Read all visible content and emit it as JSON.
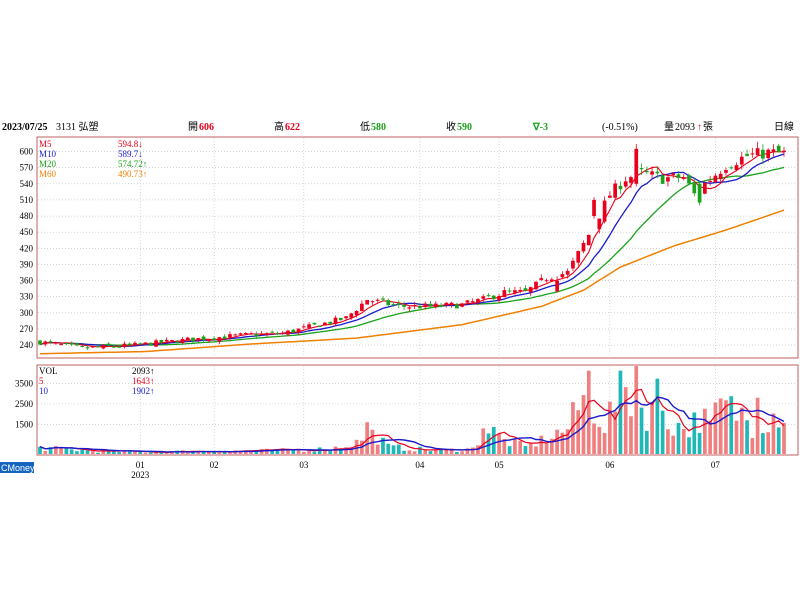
{
  "header": {
    "date": "2023/07/25",
    "stock": "3131 弘塑",
    "open_label": "開",
    "open": "606",
    "high_label": "高",
    "high": "622",
    "low_label": "低",
    "low": "580",
    "close_label": "收",
    "close": "590",
    "change": "∇-3",
    "change_pct": "(-0.51%)",
    "volume_label": "量",
    "volume": "2093",
    "volume_unit": "張",
    "period": "日線"
  },
  "legend": {
    "price": [
      {
        "name": "M5",
        "value": "594.8",
        "arrow": "↓",
        "color": "#e8001c"
      },
      {
        "name": "M10",
        "value": "589.7",
        "arrow": "↓",
        "color": "#1a1acc"
      },
      {
        "name": "M20",
        "value": "574.72",
        "arrow": "↑",
        "color": "#1aa31a"
      },
      {
        "name": "M60",
        "value": "490.73",
        "arrow": "↑",
        "color": "#f08000"
      }
    ],
    "volume": [
      {
        "name": "VOL",
        "value": "2093",
        "arrow": "↑",
        "color": "#000000"
      },
      {
        "name": "5",
        "value": "1643",
        "arrow": "↑",
        "color": "#e8001c"
      },
      {
        "name": "10",
        "value": "1902",
        "arrow": "↑",
        "color": "#1a1acc"
      }
    ]
  },
  "brand": "CMoney",
  "chart_data": {
    "type": "candlestick",
    "price_axis": {
      "ticks": [
        240,
        270,
        300,
        330,
        360,
        390,
        420,
        450,
        480,
        510,
        540,
        570,
        600
      ],
      "range": [
        216,
        627
      ]
    },
    "volume_axis": {
      "ticks": [
        1500,
        2500,
        3500
      ],
      "range": [
        0,
        4400
      ]
    },
    "x_labels": [
      {
        "label": "01",
        "sub": "2023",
        "day": 19
      },
      {
        "label": "02",
        "day": 33
      },
      {
        "label": "03",
        "day": 50
      },
      {
        "label": "04",
        "day": 72
      },
      {
        "label": "05",
        "day": 87
      },
      {
        "label": "06",
        "day": 108
      },
      {
        "label": "07",
        "day": 128
      }
    ],
    "total_days": 142,
    "colors": {
      "up": "#e8001c",
      "down": "#1aa31a",
      "vol_up": "#f08080",
      "vol_down": "#1fb8b8"
    },
    "ohlc_knots": [
      [
        0,
        246
      ],
      [
        8,
        234
      ],
      [
        18,
        240
      ],
      [
        28,
        250
      ],
      [
        38,
        258
      ],
      [
        46,
        262
      ],
      [
        52,
        276
      ],
      [
        58,
        290
      ],
      [
        62,
        325
      ],
      [
        68,
        312
      ],
      [
        74,
        312
      ],
      [
        80,
        315
      ],
      [
        84,
        325
      ],
      [
        88,
        338
      ],
      [
        92,
        338
      ],
      [
        96,
        365
      ],
      [
        100,
        375
      ],
      [
        104,
        445
      ],
      [
        108,
        520
      ],
      [
        111,
        550
      ],
      [
        114,
        560
      ],
      [
        118,
        550
      ],
      [
        122,
        552
      ],
      [
        124,
        520
      ],
      [
        126,
        540
      ],
      [
        130,
        575
      ],
      [
        134,
        592
      ],
      [
        138,
        598
      ],
      [
        141,
        596
      ]
    ],
    "ma60_knots": [
      [
        0,
        224
      ],
      [
        20,
        228
      ],
      [
        40,
        242
      ],
      [
        60,
        253
      ],
      [
        80,
        278
      ],
      [
        95,
        312
      ],
      [
        103,
        342
      ],
      [
        110,
        385
      ],
      [
        120,
        424
      ],
      [
        130,
        454
      ],
      [
        141,
        491
      ]
    ],
    "volume_knots": [
      [
        0,
        350
      ],
      [
        10,
        200
      ],
      [
        18,
        150
      ],
      [
        30,
        180
      ],
      [
        45,
        220
      ],
      [
        55,
        300
      ],
      [
        60,
        600
      ],
      [
        62,
        1100
      ],
      [
        64,
        900
      ],
      [
        66,
        400
      ],
      [
        75,
        220
      ],
      [
        82,
        300
      ],
      [
        84,
        1200
      ],
      [
        86,
        1100
      ],
      [
        88,
        700
      ],
      [
        92,
        400
      ],
      [
        96,
        800
      ],
      [
        100,
        1300
      ],
      [
        103,
        2800
      ],
      [
        104,
        3600
      ],
      [
        105,
        2400
      ],
      [
        107,
        1500
      ],
      [
        109,
        2500
      ],
      [
        111,
        3200
      ],
      [
        113,
        2500
      ],
      [
        115,
        2100
      ],
      [
        117,
        2900
      ],
      [
        119,
        1700
      ],
      [
        121,
        1400
      ],
      [
        123,
        1300
      ],
      [
        125,
        1900
      ],
      [
        127,
        1400
      ],
      [
        129,
        2400
      ],
      [
        131,
        2200
      ],
      [
        133,
        2000
      ],
      [
        135,
        1500
      ],
      [
        137,
        1700
      ],
      [
        139,
        2000
      ],
      [
        141,
        2093
      ]
    ],
    "volume_spikes": [
      [
        113,
        4350
      ],
      [
        136,
        2800
      ],
      [
        84,
        1300
      ],
      [
        62,
        1600
      ]
    ]
  }
}
